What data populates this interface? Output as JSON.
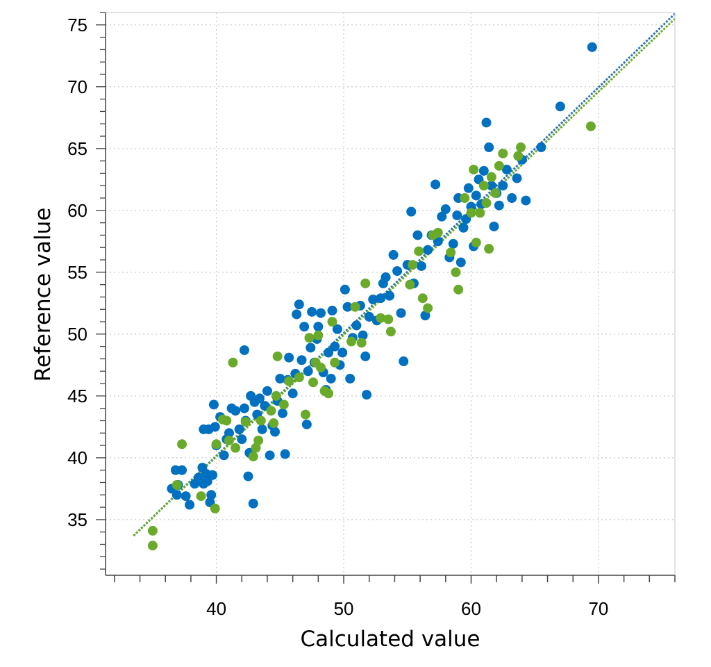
{
  "chart_data": {
    "type": "scatter",
    "title": "",
    "xlabel": "Calculated value",
    "ylabel": "Reference value",
    "xlim": [
      31.3,
      76
    ],
    "ylim": [
      30.5,
      76
    ],
    "x_ticks": [
      "40",
      "50",
      "60",
      "70"
    ],
    "y_ticks": [
      "35",
      "40",
      "45",
      "50",
      "55",
      "60",
      "65",
      "70",
      "75"
    ],
    "grid": true,
    "legend": "none",
    "series": [
      {
        "color": "#0070c0",
        "marker": "circle",
        "points": [
          [
            36.5,
            37.5
          ],
          [
            36.8,
            39.0
          ],
          [
            36.9,
            37.0
          ],
          [
            37.0,
            37.8
          ],
          [
            37.3,
            39.0
          ],
          [
            37.6,
            36.9
          ],
          [
            37.9,
            36.2
          ],
          [
            38.3,
            37.9
          ],
          [
            38.6,
            38.4
          ],
          [
            38.9,
            39.2
          ],
          [
            39.0,
            37.9
          ],
          [
            39.2,
            38.7
          ],
          [
            39.3,
            38.1
          ],
          [
            39.5,
            36.4
          ],
          [
            39.6,
            37.0
          ],
          [
            39.7,
            38.6
          ],
          [
            39.0,
            42.3
          ],
          [
            39.4,
            42.3
          ],
          [
            39.8,
            44.3
          ],
          [
            39.9,
            42.5
          ],
          [
            40.0,
            41.0
          ],
          [
            40.3,
            43.3
          ],
          [
            40.6,
            40.2
          ],
          [
            40.8,
            41.5
          ],
          [
            41.0,
            42.0
          ],
          [
            41.2,
            44.0
          ],
          [
            41.5,
            43.8
          ],
          [
            41.8,
            42.3
          ],
          [
            42.0,
            41.5
          ],
          [
            42.2,
            44.0
          ],
          [
            42.2,
            48.7
          ],
          [
            42.3,
            43.0
          ],
          [
            42.5,
            38.5
          ],
          [
            42.6,
            40.4
          ],
          [
            42.7,
            45.0
          ],
          [
            42.9,
            36.3
          ],
          [
            43.0,
            44.5
          ],
          [
            43.2,
            43.5
          ],
          [
            43.4,
            44.8
          ],
          [
            43.6,
            42.3
          ],
          [
            43.8,
            44.2
          ],
          [
            44.0,
            45.4
          ],
          [
            44.2,
            40.2
          ],
          [
            44.4,
            42.6
          ],
          [
            44.6,
            42.1
          ],
          [
            44.8,
            44.6
          ],
          [
            45.0,
            46.4
          ],
          [
            45.2,
            43.6
          ],
          [
            45.4,
            40.3
          ],
          [
            45.6,
            46.3
          ],
          [
            45.7,
            48.1
          ],
          [
            46.0,
            45.2
          ],
          [
            46.2,
            46.8
          ],
          [
            46.3,
            51.6
          ],
          [
            46.5,
            52.4
          ],
          [
            46.7,
            47.9
          ],
          [
            46.9,
            50.6
          ],
          [
            47.1,
            42.7
          ],
          [
            47.2,
            47.0
          ],
          [
            47.4,
            48.9
          ],
          [
            47.5,
            51.8
          ],
          [
            47.7,
            47.7
          ],
          [
            47.9,
            49.6
          ],
          [
            48.0,
            50.6
          ],
          [
            48.2,
            51.7
          ],
          [
            48.4,
            46.9
          ],
          [
            48.6,
            45.5
          ],
          [
            48.8,
            48.5
          ],
          [
            49.0,
            46.4
          ],
          [
            49.1,
            51.9
          ],
          [
            49.3,
            49.0
          ],
          [
            49.5,
            50.4
          ],
          [
            49.7,
            47.5
          ],
          [
            49.9,
            48.5
          ],
          [
            50.1,
            53.6
          ],
          [
            50.3,
            52.2
          ],
          [
            50.5,
            46.4
          ],
          [
            50.7,
            49.7
          ],
          [
            51.0,
            50.7
          ],
          [
            51.3,
            52.3
          ],
          [
            51.5,
            49.9
          ],
          [
            51.7,
            48.2
          ],
          [
            51.8,
            45.1
          ],
          [
            52.0,
            51.4
          ],
          [
            52.3,
            52.8
          ],
          [
            52.6,
            51.1
          ],
          [
            52.9,
            52.9
          ],
          [
            53.1,
            54.1
          ],
          [
            53.3,
            54.6
          ],
          [
            53.6,
            53.1
          ],
          [
            53.9,
            56.4
          ],
          [
            54.2,
            55.1
          ],
          [
            54.5,
            51.7
          ],
          [
            54.7,
            47.8
          ],
          [
            55.0,
            55.6
          ],
          [
            55.3,
            59.9
          ],
          [
            55.5,
            54.1
          ],
          [
            55.8,
            58.0
          ],
          [
            56.1,
            55.5
          ],
          [
            56.4,
            51.5
          ],
          [
            56.6,
            56.8
          ],
          [
            56.9,
            58.0
          ],
          [
            57.2,
            62.1
          ],
          [
            57.4,
            57.5
          ],
          [
            57.7,
            59.5
          ],
          [
            58.0,
            60.1
          ],
          [
            58.3,
            56.2
          ],
          [
            58.6,
            57.3
          ],
          [
            58.9,
            59.6
          ],
          [
            59.0,
            61.0
          ],
          [
            59.2,
            55.8
          ],
          [
            59.4,
            58.6
          ],
          [
            59.6,
            59.3
          ],
          [
            59.8,
            61.8
          ],
          [
            60.0,
            60.3
          ],
          [
            60.2,
            57.1
          ],
          [
            60.4,
            61.2
          ],
          [
            60.6,
            62.5
          ],
          [
            60.8,
            60.5
          ],
          [
            61.0,
            63.2
          ],
          [
            61.2,
            67.1
          ],
          [
            61.4,
            65.1
          ],
          [
            61.6,
            62.0
          ],
          [
            61.8,
            58.7
          ],
          [
            62.0,
            61.4
          ],
          [
            62.2,
            60.4
          ],
          [
            62.5,
            62.0
          ],
          [
            62.8,
            63.3
          ],
          [
            63.2,
            61.0
          ],
          [
            63.6,
            62.6
          ],
          [
            64.0,
            64.1
          ],
          [
            64.3,
            60.8
          ],
          [
            65.5,
            65.1
          ],
          [
            67.0,
            68.4
          ],
          [
            69.5,
            73.2
          ]
        ]
      },
      {
        "color": "#6aaa2a",
        "marker": "circle",
        "points": [
          [
            35.0,
            34.1
          ],
          [
            35.0,
            32.9
          ],
          [
            36.9,
            37.8
          ],
          [
            37.3,
            41.1
          ],
          [
            38.8,
            36.9
          ],
          [
            39.9,
            35.9
          ],
          [
            40.0,
            41.1
          ],
          [
            40.5,
            43.1
          ],
          [
            40.8,
            43.0
          ],
          [
            41.0,
            41.4
          ],
          [
            41.3,
            47.7
          ],
          [
            41.5,
            40.8
          ],
          [
            42.3,
            42.9
          ],
          [
            42.9,
            40.1
          ],
          [
            43.1,
            40.8
          ],
          [
            43.3,
            41.4
          ],
          [
            43.5,
            43.0
          ],
          [
            44.3,
            43.8
          ],
          [
            44.5,
            42.8
          ],
          [
            44.7,
            45.0
          ],
          [
            44.8,
            48.2
          ],
          [
            45.3,
            44.3
          ],
          [
            45.7,
            46.2
          ],
          [
            46.5,
            46.5
          ],
          [
            47.0,
            43.5
          ],
          [
            47.3,
            49.7
          ],
          [
            47.6,
            46.1
          ],
          [
            47.8,
            47.7
          ],
          [
            48.0,
            49.9
          ],
          [
            48.2,
            47.3
          ],
          [
            48.5,
            45.4
          ],
          [
            48.8,
            45.2
          ],
          [
            49.1,
            51.0
          ],
          [
            49.3,
            47.7
          ],
          [
            50.6,
            49.4
          ],
          [
            50.9,
            52.2
          ],
          [
            51.4,
            49.3
          ],
          [
            51.7,
            54.1
          ],
          [
            52.9,
            51.3
          ],
          [
            53.5,
            51.2
          ],
          [
            53.7,
            50.2
          ],
          [
            55.2,
            54.0
          ],
          [
            55.4,
            55.6
          ],
          [
            55.9,
            56.7
          ],
          [
            56.2,
            52.9
          ],
          [
            56.6,
            52.1
          ],
          [
            57.0,
            58.0
          ],
          [
            57.4,
            58.2
          ],
          [
            58.4,
            56.6
          ],
          [
            58.8,
            55.0
          ],
          [
            59.0,
            53.6
          ],
          [
            59.5,
            61.0
          ],
          [
            60.0,
            59.8
          ],
          [
            60.2,
            63.3
          ],
          [
            60.4,
            57.4
          ],
          [
            60.7,
            59.8
          ],
          [
            61.0,
            62.0
          ],
          [
            61.2,
            60.6
          ],
          [
            61.4,
            56.9
          ],
          [
            61.6,
            62.7
          ],
          [
            61.9,
            61.4
          ],
          [
            62.2,
            63.6
          ],
          [
            62.5,
            64.6
          ],
          [
            63.7,
            64.4
          ],
          [
            63.9,
            65.1
          ],
          [
            69.4,
            66.8
          ]
        ]
      }
    ],
    "fit_lines": [
      {
        "color": "#2e75b6",
        "points": [
          [
            33.5,
            33.7
          ],
          [
            76,
            75.9
          ]
        ]
      },
      {
        "color": "#6aaa2a",
        "points": [
          [
            33.5,
            33.7
          ],
          [
            76,
            75.5
          ]
        ]
      }
    ]
  }
}
